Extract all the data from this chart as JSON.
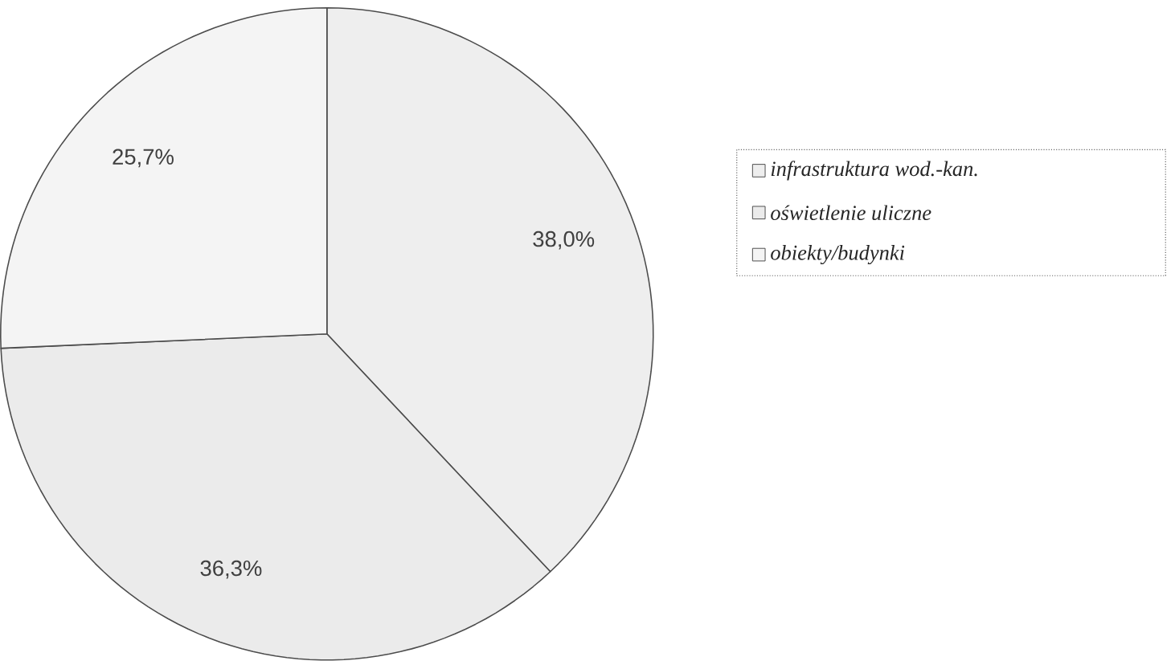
{
  "chart_data": {
    "type": "pie",
    "categories": [
      "infrastruktura wod.-kan.",
      "oświetlenie uliczne",
      "obiekty/budynki"
    ],
    "values": [
      38.0,
      36.3,
      25.7
    ],
    "value_labels": [
      "38,0%",
      "36,3%",
      "25,7%"
    ],
    "colors": [
      "#eeeeee",
      "#ebebeb",
      "#f4f4f4"
    ],
    "legend": "right"
  }
}
